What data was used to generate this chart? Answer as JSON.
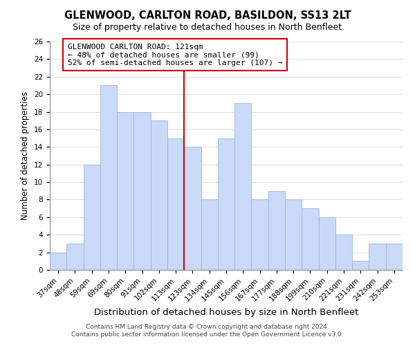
{
  "title": "GLENWOOD, CARLTON ROAD, BASILDON, SS13 2LT",
  "subtitle": "Size of property relative to detached houses in North Benfleet",
  "xlabel": "Distribution of detached houses by size in North Benfleet",
  "ylabel": "Number of detached properties",
  "bar_labels": [
    "37sqm",
    "48sqm",
    "59sqm",
    "69sqm",
    "80sqm",
    "91sqm",
    "102sqm",
    "113sqm",
    "123sqm",
    "134sqm",
    "145sqm",
    "156sqm",
    "167sqm",
    "177sqm",
    "188sqm",
    "199sqm",
    "210sqm",
    "221sqm",
    "231sqm",
    "242sqm",
    "253sqm"
  ],
  "bar_values": [
    2,
    3,
    12,
    21,
    18,
    18,
    17,
    15,
    14,
    8,
    15,
    19,
    8,
    9,
    8,
    7,
    6,
    4,
    1,
    3,
    3
  ],
  "bar_color": "#c9daf8",
  "bar_edge_color": "#a0b4d8",
  "vline_color": "#cc0000",
  "vline_x": 7.5,
  "annotation_title": "GLENWOOD CARLTON ROAD: 121sqm",
  "annotation_line1": "← 48% of detached houses are smaller (99)",
  "annotation_line2": "52% of semi-detached houses are larger (107) →",
  "annotation_box_facecolor": "#ffffff",
  "annotation_box_edgecolor": "#cc0000",
  "ylim": [
    0,
    26
  ],
  "yticks": [
    0,
    2,
    4,
    6,
    8,
    10,
    12,
    14,
    16,
    18,
    20,
    22,
    24,
    26
  ],
  "footer1": "Contains HM Land Registry data © Crown copyright and database right 2024.",
  "footer2": "Contains public sector information licensed under the Open Government Licence v3.0.",
  "title_fontsize": 10.5,
  "subtitle_fontsize": 9,
  "xlabel_fontsize": 9.5,
  "ylabel_fontsize": 8.5,
  "tick_fontsize": 7.5,
  "annotation_title_fontsize": 8.5,
  "annotation_body_fontsize": 8,
  "footer_fontsize": 6.5,
  "bg_color": "#ffffff",
  "grid_color": "#d0d0d0"
}
